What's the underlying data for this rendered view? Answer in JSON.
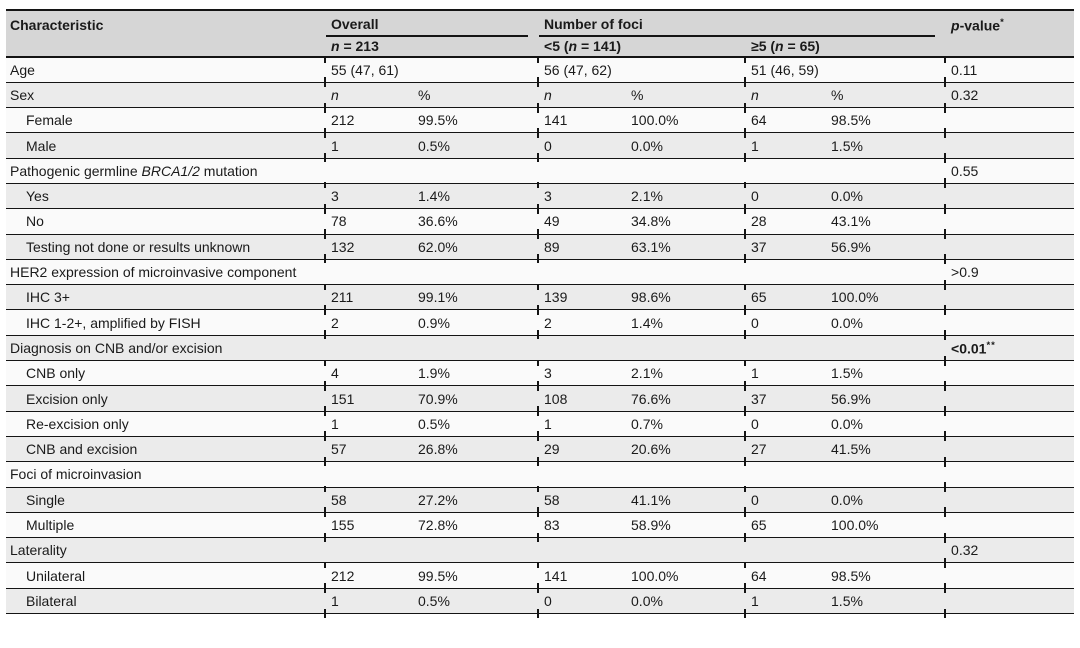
{
  "colors": {
    "header_bg": "#d6d6d6",
    "row_even": "#fafafa",
    "row_odd": "#ebebeb",
    "border": "#141414",
    "text": "#1a1a1a"
  },
  "table": {
    "header": {
      "characteristic": "Characteristic",
      "overall": "Overall",
      "number_of_foci": "Number of foci",
      "n_italic": "n",
      "overall_n_rest": " = 213",
      "lt5_pre": "<5 (",
      "lt5_rest": " = 141)",
      "ge5_pre": "≥5 (",
      "ge5_rest": " = 65)",
      "p_italic": "p",
      "p_rest": "-value",
      "p_sup": "*"
    },
    "rows": [
      {
        "kind": "span2",
        "indent": false,
        "label": [
          {
            "t": "Age"
          }
        ],
        "cells": [
          "55 (47, 61)",
          "56 (47, 62)",
          "51 (46, 59)"
        ],
        "p": "0.11"
      },
      {
        "kind": "nperc",
        "indent": false,
        "label": [
          {
            "t": "Sex"
          }
        ],
        "n_label": "n",
        "pct_label": "%",
        "p": "0.32"
      },
      {
        "kind": "data",
        "indent": true,
        "label": [
          {
            "t": "Female"
          }
        ],
        "cells": [
          "212",
          "99.5%",
          "141",
          "100.0%",
          "64",
          "98.5%"
        ],
        "p": ""
      },
      {
        "kind": "data",
        "indent": true,
        "label": [
          {
            "t": "Male"
          }
        ],
        "cells": [
          "1",
          "0.5%",
          "0",
          "0.0%",
          "1",
          "1.5%"
        ],
        "p": ""
      },
      {
        "kind": "section",
        "indent": false,
        "label": [
          {
            "t": "Pathogenic germline "
          },
          {
            "t": "BRCA1/2",
            "i": true
          },
          {
            "t": " mutation"
          }
        ],
        "p": "0.55"
      },
      {
        "kind": "data",
        "indent": true,
        "label": [
          {
            "t": "Yes"
          }
        ],
        "cells": [
          "3",
          "1.4%",
          "3",
          "2.1%",
          "0",
          "0.0%"
        ],
        "p": ""
      },
      {
        "kind": "data",
        "indent": true,
        "label": [
          {
            "t": "No"
          }
        ],
        "cells": [
          "78",
          "36.6%",
          "49",
          "34.8%",
          "28",
          "43.1%"
        ],
        "p": ""
      },
      {
        "kind": "data",
        "indent": true,
        "label": [
          {
            "t": "Testing not done or results unknown"
          }
        ],
        "cells": [
          "132",
          "62.0%",
          "89",
          "63.1%",
          "37",
          "56.9%"
        ],
        "p": ""
      },
      {
        "kind": "section",
        "indent": false,
        "label": [
          {
            "t": "HER2 expression of microinvasive component"
          }
        ],
        "p": ">0.9"
      },
      {
        "kind": "data",
        "indent": true,
        "label": [
          {
            "t": "IHC 3+"
          }
        ],
        "cells": [
          "211",
          "99.1%",
          "139",
          "98.6%",
          "65",
          "100.0%"
        ],
        "p": ""
      },
      {
        "kind": "data",
        "indent": true,
        "label": [
          {
            "t": "IHC 1-2+, amplified by FISH"
          }
        ],
        "cells": [
          "2",
          "0.9%",
          "2",
          "1.4%",
          "0",
          "0.0%"
        ],
        "p": ""
      },
      {
        "kind": "section",
        "indent": false,
        "label": [
          {
            "t": "Diagnosis on CNB and/or excision"
          }
        ],
        "p": "<0.01",
        "p_sup": "**",
        "p_bold": true
      },
      {
        "kind": "data",
        "indent": true,
        "label": [
          {
            "t": "CNB only"
          }
        ],
        "cells": [
          "4",
          "1.9%",
          "3",
          "2.1%",
          "1",
          "1.5%"
        ],
        "p": ""
      },
      {
        "kind": "data",
        "indent": true,
        "label": [
          {
            "t": "Excision only"
          }
        ],
        "cells": [
          "151",
          "70.9%",
          "108",
          "76.6%",
          "37",
          "56.9%"
        ],
        "p": ""
      },
      {
        "kind": "data",
        "indent": true,
        "label": [
          {
            "t": "Re-excision only"
          }
        ],
        "cells": [
          "1",
          "0.5%",
          "1",
          "0.7%",
          "0",
          "0.0%"
        ],
        "p": ""
      },
      {
        "kind": "data",
        "indent": true,
        "label": [
          {
            "t": "CNB and excision"
          }
        ],
        "cells": [
          "57",
          "26.8%",
          "29",
          "20.6%",
          "27",
          "41.5%"
        ],
        "p": ""
      },
      {
        "kind": "section",
        "indent": false,
        "label": [
          {
            "t": "Foci of microinvasion"
          }
        ],
        "p": ""
      },
      {
        "kind": "data",
        "indent": true,
        "label": [
          {
            "t": "Single"
          }
        ],
        "cells": [
          "58",
          "27.2%",
          "58",
          "41.1%",
          "0",
          "0.0%"
        ],
        "p": ""
      },
      {
        "kind": "data",
        "indent": true,
        "label": [
          {
            "t": "Multiple"
          }
        ],
        "cells": [
          "155",
          "72.8%",
          "83",
          "58.9%",
          "65",
          "100.0%"
        ],
        "p": ""
      },
      {
        "kind": "section",
        "indent": false,
        "label": [
          {
            "t": "Laterality"
          }
        ],
        "p": "0.32"
      },
      {
        "kind": "data",
        "indent": true,
        "label": [
          {
            "t": "Unilateral"
          }
        ],
        "cells": [
          "212",
          "99.5%",
          "141",
          "100.0%",
          "64",
          "98.5%"
        ],
        "p": ""
      },
      {
        "kind": "data",
        "indent": true,
        "label": [
          {
            "t": "Bilateral"
          }
        ],
        "cells": [
          "1",
          "0.5%",
          "0",
          "0.0%",
          "1",
          "1.5%"
        ],
        "p": ""
      }
    ]
  }
}
